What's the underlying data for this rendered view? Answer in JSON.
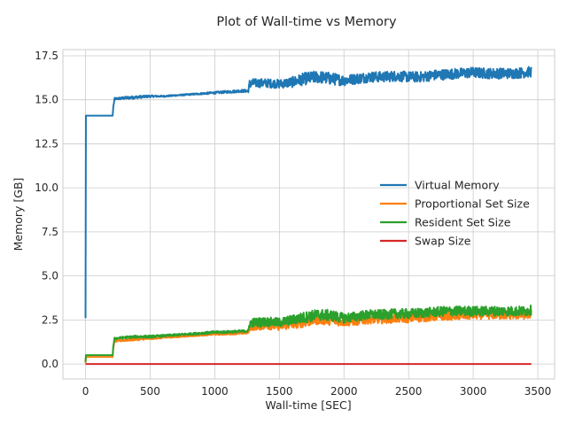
{
  "chart_data": {
    "type": "line",
    "title": "Plot of Wall-time vs Memory",
    "xlabel": "Wall-time [SEC]",
    "ylabel": "Memory [GB]",
    "xlim": [
      -175,
      3630
    ],
    "ylim": [
      -0.85,
      17.85
    ],
    "xticks": [
      0,
      500,
      1000,
      1500,
      2000,
      2500,
      3000,
      3500
    ],
    "xtick_labels": [
      "0",
      "500",
      "1000",
      "1500",
      "2000",
      "2500",
      "3000",
      "3500"
    ],
    "yticks": [
      0,
      2.5,
      5,
      7.5,
      10,
      12.5,
      15,
      17.5
    ],
    "ytick_labels": [
      "0.0",
      "2.5",
      "5.0",
      "7.5",
      "10.0",
      "12.5",
      "15.0",
      "17.5"
    ],
    "grid": true,
    "legend_position": "center-right",
    "series": [
      {
        "name": "Virtual Memory",
        "color": "#1f77b4",
        "x": [
          0,
          3,
          6,
          50,
          100,
          150,
          210,
          215,
          225,
          300,
          400,
          500,
          600,
          700,
          800,
          900,
          1000,
          1100,
          1200,
          1260,
          1270,
          1300,
          1400,
          1500,
          1600,
          1700,
          1800,
          1900,
          2000,
          2100,
          2200,
          2300,
          2400,
          2500,
          2600,
          2700,
          2800,
          2900,
          3000,
          3100,
          3200,
          3300,
          3400,
          3450
        ],
        "y": [
          2.6,
          14.1,
          14.1,
          14.1,
          14.1,
          14.1,
          14.1,
          14.6,
          15.05,
          15.1,
          15.15,
          15.2,
          15.2,
          15.25,
          15.3,
          15.35,
          15.4,
          15.45,
          15.5,
          15.5,
          15.9,
          15.95,
          15.95,
          15.9,
          16.0,
          16.2,
          16.3,
          16.2,
          16.1,
          16.2,
          16.3,
          16.3,
          16.35,
          16.3,
          16.3,
          16.4,
          16.45,
          16.5,
          16.55,
          16.5,
          16.5,
          16.5,
          16.55,
          16.6
        ],
        "noise": [
          0,
          0,
          0,
          0,
          0,
          0,
          0,
          0,
          0.06,
          0.08,
          0.08,
          0.06,
          0.04,
          0.04,
          0.04,
          0.05,
          0.06,
          0.07,
          0.08,
          0.08,
          0.25,
          0.25,
          0.25,
          0.25,
          0.3,
          0.35,
          0.35,
          0.35,
          0.3,
          0.3,
          0.3,
          0.3,
          0.3,
          0.3,
          0.3,
          0.3,
          0.3,
          0.3,
          0.3,
          0.3,
          0.3,
          0.3,
          0.3,
          0.3
        ]
      },
      {
        "name": "Proportional Set Size",
        "color": "#ff7f0e",
        "x": [
          0,
          3,
          6,
          100,
          210,
          215,
          225,
          300,
          400,
          500,
          600,
          700,
          800,
          900,
          1000,
          1100,
          1200,
          1260,
          1270,
          1300,
          1400,
          1500,
          1600,
          1700,
          1800,
          1900,
          2000,
          2100,
          2200,
          2300,
          2400,
          2500,
          2600,
          2700,
          2800,
          2900,
          3000,
          3100,
          3200,
          3300,
          3400,
          3450
        ],
        "y": [
          0.05,
          0.4,
          0.4,
          0.4,
          0.4,
          0.9,
          1.3,
          1.35,
          1.4,
          1.45,
          1.5,
          1.55,
          1.6,
          1.65,
          1.7,
          1.72,
          1.75,
          1.78,
          2.1,
          2.15,
          2.2,
          2.15,
          2.25,
          2.4,
          2.55,
          2.5,
          2.4,
          2.45,
          2.55,
          2.55,
          2.6,
          2.6,
          2.65,
          2.7,
          2.75,
          2.75,
          2.8,
          2.8,
          2.8,
          2.8,
          2.8,
          2.85
        ],
        "noise": [
          0,
          0,
          0,
          0,
          0,
          0,
          0.05,
          0.06,
          0.06,
          0.06,
          0.05,
          0.05,
          0.05,
          0.05,
          0.06,
          0.06,
          0.06,
          0.06,
          0.22,
          0.24,
          0.24,
          0.24,
          0.26,
          0.3,
          0.3,
          0.3,
          0.26,
          0.26,
          0.26,
          0.26,
          0.26,
          0.26,
          0.26,
          0.26,
          0.26,
          0.26,
          0.26,
          0.26,
          0.26,
          0.26,
          0.26,
          0.26
        ]
      },
      {
        "name": "Resident Set Size",
        "color": "#2ca02c",
        "x": [
          0,
          3,
          6,
          100,
          210,
          215,
          225,
          300,
          400,
          500,
          600,
          700,
          800,
          900,
          1000,
          1100,
          1200,
          1260,
          1270,
          1300,
          1400,
          1500,
          1600,
          1700,
          1800,
          1900,
          2000,
          2100,
          2200,
          2300,
          2400,
          2500,
          2600,
          2700,
          2800,
          2900,
          3000,
          3100,
          3200,
          3300,
          3400,
          3450
        ],
        "y": [
          0.1,
          0.5,
          0.5,
          0.5,
          0.5,
          1.0,
          1.45,
          1.5,
          1.55,
          1.55,
          1.6,
          1.65,
          1.7,
          1.75,
          1.8,
          1.82,
          1.85,
          1.88,
          2.3,
          2.35,
          2.4,
          2.35,
          2.5,
          2.65,
          2.8,
          2.75,
          2.6,
          2.7,
          2.8,
          2.8,
          2.85,
          2.85,
          2.9,
          2.95,
          3.0,
          3.0,
          3.0,
          3.0,
          3.0,
          3.0,
          3.0,
          3.05
        ],
        "noise": [
          0,
          0,
          0,
          0,
          0,
          0,
          0.06,
          0.07,
          0.07,
          0.07,
          0.06,
          0.06,
          0.06,
          0.06,
          0.07,
          0.07,
          0.07,
          0.07,
          0.24,
          0.26,
          0.26,
          0.26,
          0.28,
          0.32,
          0.32,
          0.32,
          0.28,
          0.28,
          0.28,
          0.28,
          0.28,
          0.28,
          0.28,
          0.28,
          0.28,
          0.28,
          0.28,
          0.28,
          0.28,
          0.28,
          0.28,
          0.28
        ]
      },
      {
        "name": "Swap Size",
        "color": "#d62728",
        "x": [
          0,
          3450
        ],
        "y": [
          0,
          0
        ],
        "noise": [
          0,
          0
        ]
      }
    ]
  }
}
